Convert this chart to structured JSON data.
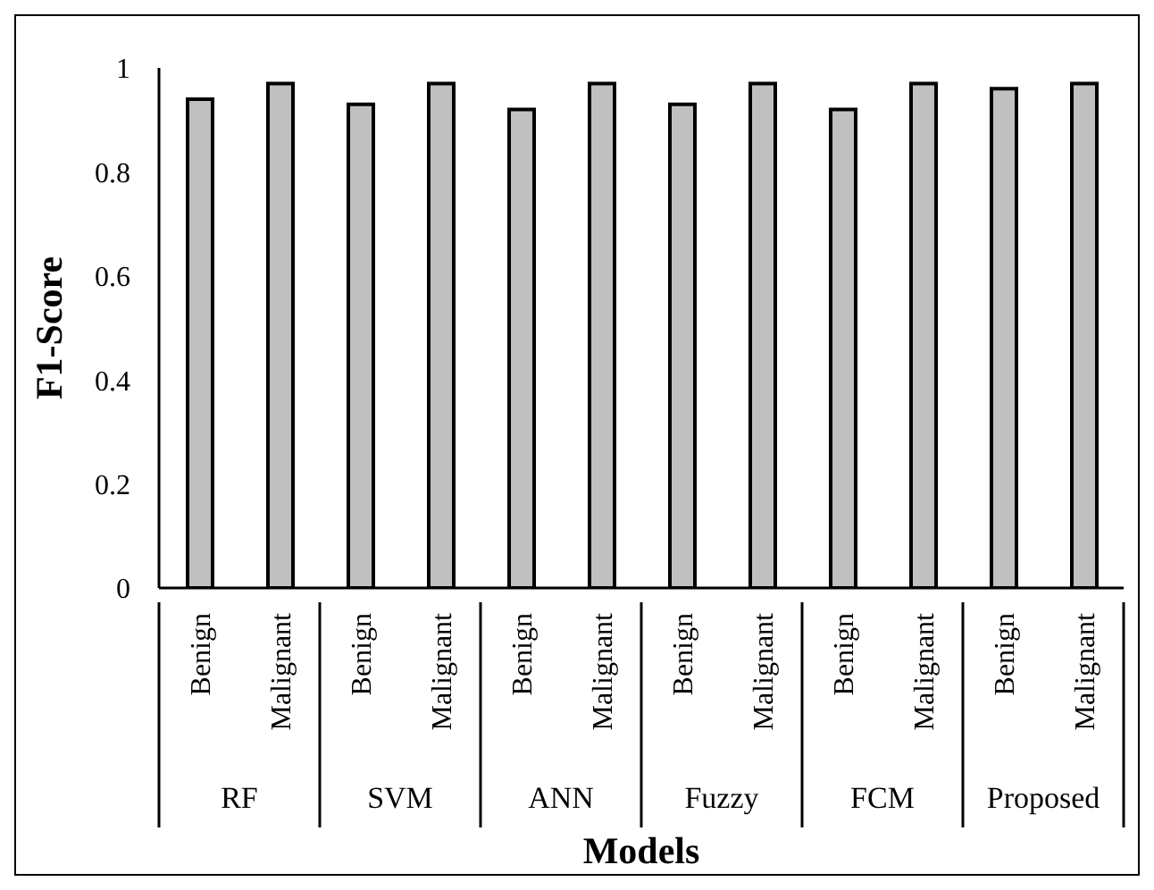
{
  "chart_data": {
    "type": "bar",
    "xlabel": "Models",
    "ylabel": "F1-Score",
    "categories": [
      "Benign",
      "Malignant",
      "Benign",
      "Malignant",
      "Benign",
      "Malignant",
      "Benign",
      "Malignant",
      "Benign",
      "Malignant",
      "Benign",
      "Malignant"
    ],
    "values": [
      0.94,
      0.97,
      0.93,
      0.97,
      0.92,
      0.97,
      0.93,
      0.97,
      0.92,
      0.97,
      0.96,
      0.97
    ],
    "color": "#c0c0c0",
    "ylim": [
      0,
      1
    ],
    "yticks": [
      0,
      0.2,
      0.4,
      0.6,
      0.8,
      1
    ],
    "grid": false,
    "legend": false,
    "annotations": [
      "RF",
      "SVM",
      "ANN",
      "Fuzzy",
      "FCM",
      "Proposed"
    ]
  }
}
